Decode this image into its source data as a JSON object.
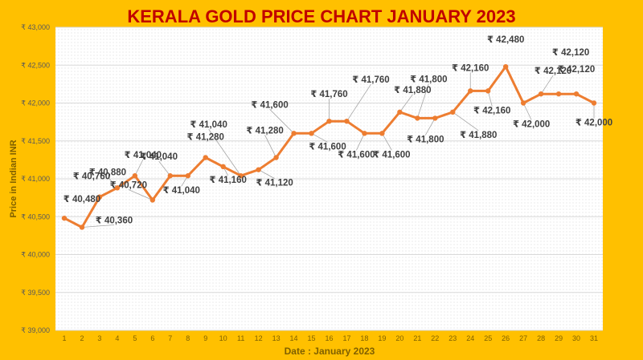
{
  "chart_data": {
    "type": "line",
    "title": "KERALA GOLD PRICE CHART JANUARY 2023",
    "xlabel": "Date : January 2023",
    "ylabel": "Price in Indian INR",
    "categories": [
      "1",
      "2",
      "3",
      "4",
      "5",
      "6",
      "7",
      "8",
      "9",
      "10",
      "11",
      "12",
      "13",
      "14",
      "15",
      "16",
      "17",
      "18",
      "19",
      "20",
      "21",
      "22",
      "23",
      "24",
      "25",
      "26",
      "27",
      "28",
      "29",
      "30",
      "31"
    ],
    "series": [
      {
        "values": [
          40480,
          40360,
          40760,
          40880,
          41040,
          40720,
          41040,
          41040,
          41280,
          41160,
          41040,
          41120,
          41280,
          41600,
          41600,
          41760,
          41760,
          41600,
          41600,
          41880,
          41800,
          41800,
          41880,
          42160,
          42160,
          42480,
          42000,
          42120,
          42120,
          42120,
          42000
        ]
      }
    ],
    "data_labels": [
      "₹ 40,480",
      "₹ 40,360",
      "₹ 40,760",
      "₹ 40,880",
      "₹ 41,040",
      "₹ 40,720",
      "₹ 41,040",
      "₹ 41,040",
      "₹ 41,280",
      "₹ 41,160",
      "₹ 41,040",
      "₹ 41,120",
      "₹ 41,280",
      "₹ 41,600",
      "₹ 41,600",
      "₹ 41,760",
      "₹ 41,760",
      "₹ 41,600",
      "₹ 41,600",
      "₹ 41,880",
      "₹ 41,800",
      "₹ 41,800",
      "₹ 41,880",
      "₹ 42,160",
      "₹ 42,160",
      "₹ 42,480",
      "₹ 42,000",
      "₹ 42,120",
      "₹ 42,120",
      "₹ 42,120",
      "₹ 42,000"
    ],
    "yticks": [
      39000,
      39500,
      40000,
      40500,
      41000,
      41500,
      42000,
      42500,
      43000
    ],
    "ytick_labels": [
      "₹ 39,000",
      "₹ 39,500",
      "₹ 40,000",
      "₹ 40,500",
      "₹ 41,000",
      "₹ 41,500",
      "₹ 42,000",
      "₹ 42,500",
      "₹ 43,000"
    ],
    "ylim": [
      39000,
      43000
    ],
    "grid": true,
    "colors": {
      "background": "#FFC000",
      "plot_area": "#FFFFFF",
      "line": "#ED7D31",
      "title": "#C00000",
      "axis_title": "#7F6000",
      "label_text": "#404040",
      "tick_text": "#595959",
      "leader": "#A6A6A6"
    }
  }
}
